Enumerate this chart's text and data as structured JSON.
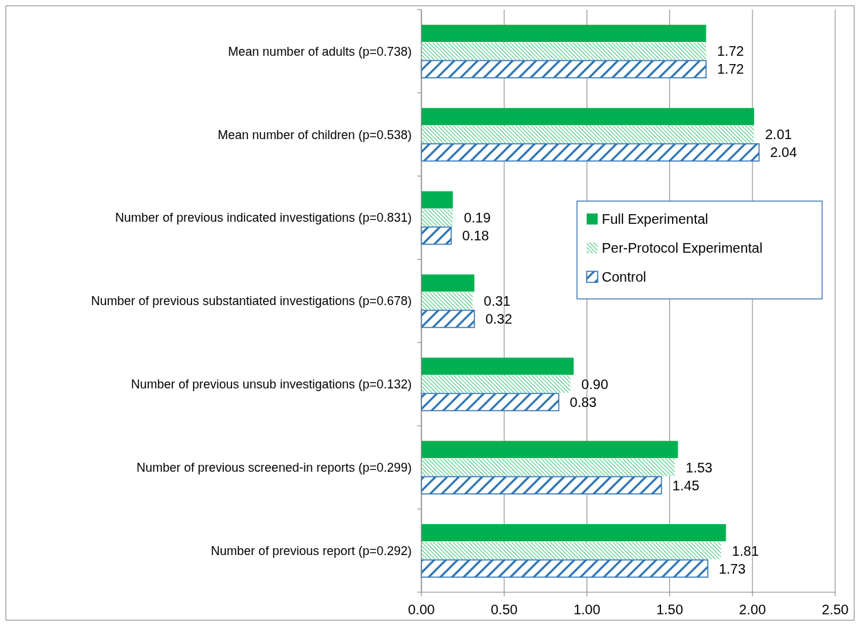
{
  "chart_data": {
    "type": "bar",
    "orientation": "horizontal",
    "categories": [
      "Mean number of adults (p=0.738)",
      "Mean number of children (p=0.538)",
      "Number of previous indicated investigations (p=0.831)",
      "Number of previous substantiated investigations (p=0.678)",
      "Number of previous unsub investigations (p=0.132)",
      "Number of previous screened-in reports (p=0.299)",
      "Number of previous report (p=0.292)"
    ],
    "series": [
      {
        "name": "Full Experimental",
        "color": "#00b050",
        "values": [
          1.72,
          2.01,
          0.19,
          0.32,
          0.92,
          1.55,
          1.84
        ]
      },
      {
        "name": "Per-Protocol Experimental",
        "color": "#00b050",
        "values": [
          1.72,
          2.01,
          0.19,
          0.31,
          0.9,
          1.53,
          1.81
        ],
        "value_labels": [
          "1.72",
          "2.01",
          "0.19",
          "0.31",
          "0.90",
          "1.53",
          "1.81"
        ]
      },
      {
        "name": "Control",
        "color": "#2e75b6",
        "values": [
          1.72,
          2.04,
          0.18,
          0.32,
          0.83,
          1.45,
          1.73
        ],
        "value_labels": [
          "1.72",
          "2.04",
          "0.18",
          "0.32",
          "0.83",
          "1.45",
          "1.73"
        ]
      }
    ],
    "xlim": [
      0,
      2.5
    ],
    "xticks": [
      {
        "value": 0,
        "label": "0.00"
      },
      {
        "value": 0.5,
        "label": "0.50"
      },
      {
        "value": 1,
        "label": "1.00"
      },
      {
        "value": 1.5,
        "label": "1.50"
      },
      {
        "value": 2,
        "label": "2.00"
      },
      {
        "value": 2.5,
        "label": "2.50"
      }
    ],
    "grid": "x",
    "legend": "right"
  }
}
